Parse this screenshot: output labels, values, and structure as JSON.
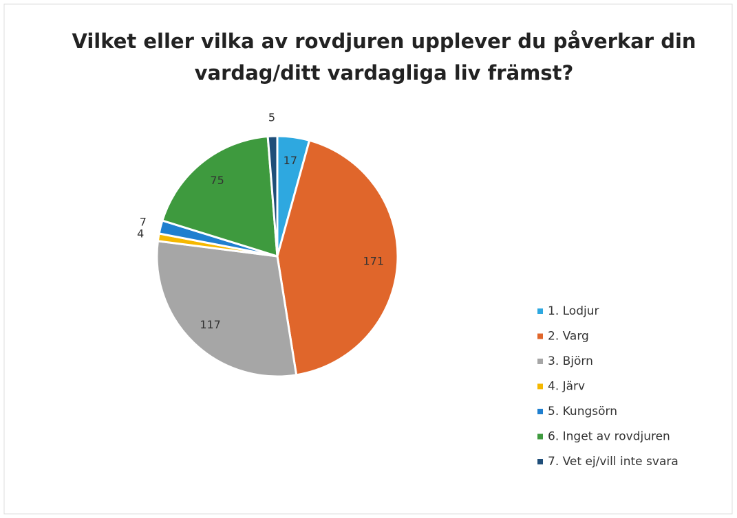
{
  "chart_data": {
    "type": "pie",
    "title": [
      "Vilket eller vilka av rovdjuren upplever du påverkar din",
      "vardag/ditt vardagliga liv främst?"
    ],
    "categories": [
      "1. Lodjur",
      "2. Varg",
      "3. Björn",
      "4. Järv",
      "5. Kungsörn",
      "6. Inget av rovdjuren",
      "7. Vet ej/vill inte svara"
    ],
    "values": [
      17,
      171,
      117,
      4,
      7,
      75,
      5
    ],
    "colors": [
      "#2ea8e0",
      "#e0662b",
      "#a6a6a6",
      "#f5b800",
      "#1f7fcf",
      "#3e9a3e",
      "#1f4e79"
    ],
    "legend": "right"
  }
}
